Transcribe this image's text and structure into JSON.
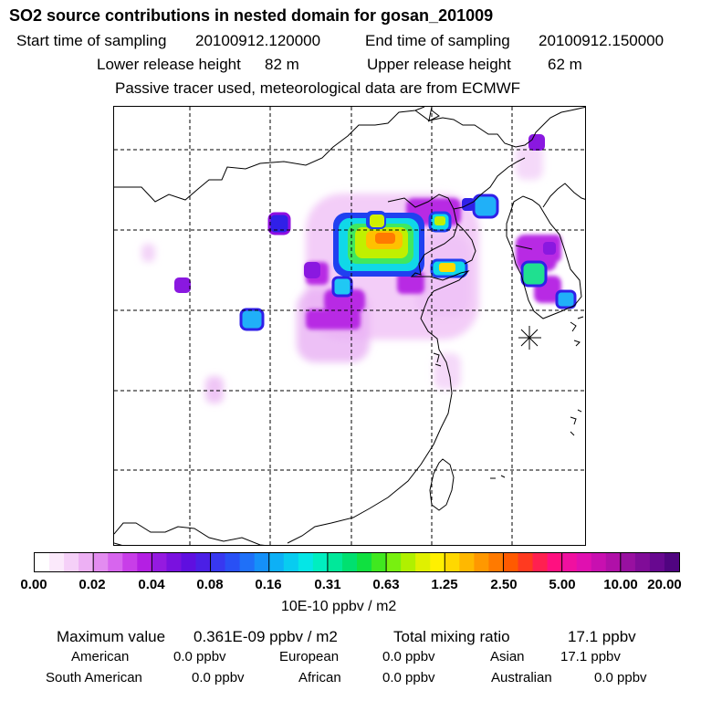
{
  "header": {
    "title": "SO2 source contributions in nested domain for gosan_201009",
    "start_label": "Start time of sampling",
    "start_value": "20100912.120000",
    "end_label": "End time of sampling",
    "end_value": "20100912.150000",
    "lower_label": "Lower release height",
    "lower_value": "82 m",
    "upper_label": "Upper release height",
    "upper_value": "62 m",
    "note": "Passive tracer used, meteorological data are from ECMWF"
  },
  "colorbar": {
    "ticks": [
      "0.00",
      "0.02",
      "0.04",
      "0.08",
      "0.16",
      "0.31",
      "0.63",
      "1.25",
      "2.50",
      "5.00",
      "10.00",
      "20.00"
    ],
    "units": "10E-10 ppbv / m2",
    "colors": [
      "#ffffff",
      "#fbe9fb",
      "#f5d0f8",
      "#edb0f4",
      "#e38cf0",
      "#d765ee",
      "#c83ee8",
      "#b41fe3",
      "#951ae0",
      "#7a11df",
      "#5f0fe0",
      "#4b1fe6",
      "#3838f0",
      "#2950f5",
      "#1f70f8",
      "#1590f9",
      "#0db0f6",
      "#08ccf0",
      "#05e6e6",
      "#00eec0",
      "#00e89a",
      "#00e070",
      "#10e040",
      "#40e820",
      "#78f010",
      "#b0f000",
      "#e0f000",
      "#fff000",
      "#ffd800",
      "#ffb800",
      "#ff9800",
      "#ff7a00",
      "#ff5a00",
      "#ff3a20",
      "#ff2050",
      "#ff1080",
      "#f010a0",
      "#e010b0",
      "#c810b0",
      "#b010a8",
      "#9810a0",
      "#800c98",
      "#680890",
      "#500480"
    ]
  },
  "stats": {
    "max_label": "Maximum value",
    "max_value": "0.361E-09 ppbv / m2",
    "total_label": "Total mixing ratio",
    "total_value": "17.1 ppbv",
    "regions": [
      {
        "name": "American",
        "value": "0.0 ppbv"
      },
      {
        "name": "European",
        "value": "0.0 ppbv"
      },
      {
        "name": "Asian",
        "value": "17.1 ppbv"
      },
      {
        "name": "South American",
        "value": "0.0 ppbv"
      },
      {
        "name": "African",
        "value": "0.0 ppbv"
      },
      {
        "name": "Australian",
        "value": "0.0 ppbv"
      }
    ]
  }
}
